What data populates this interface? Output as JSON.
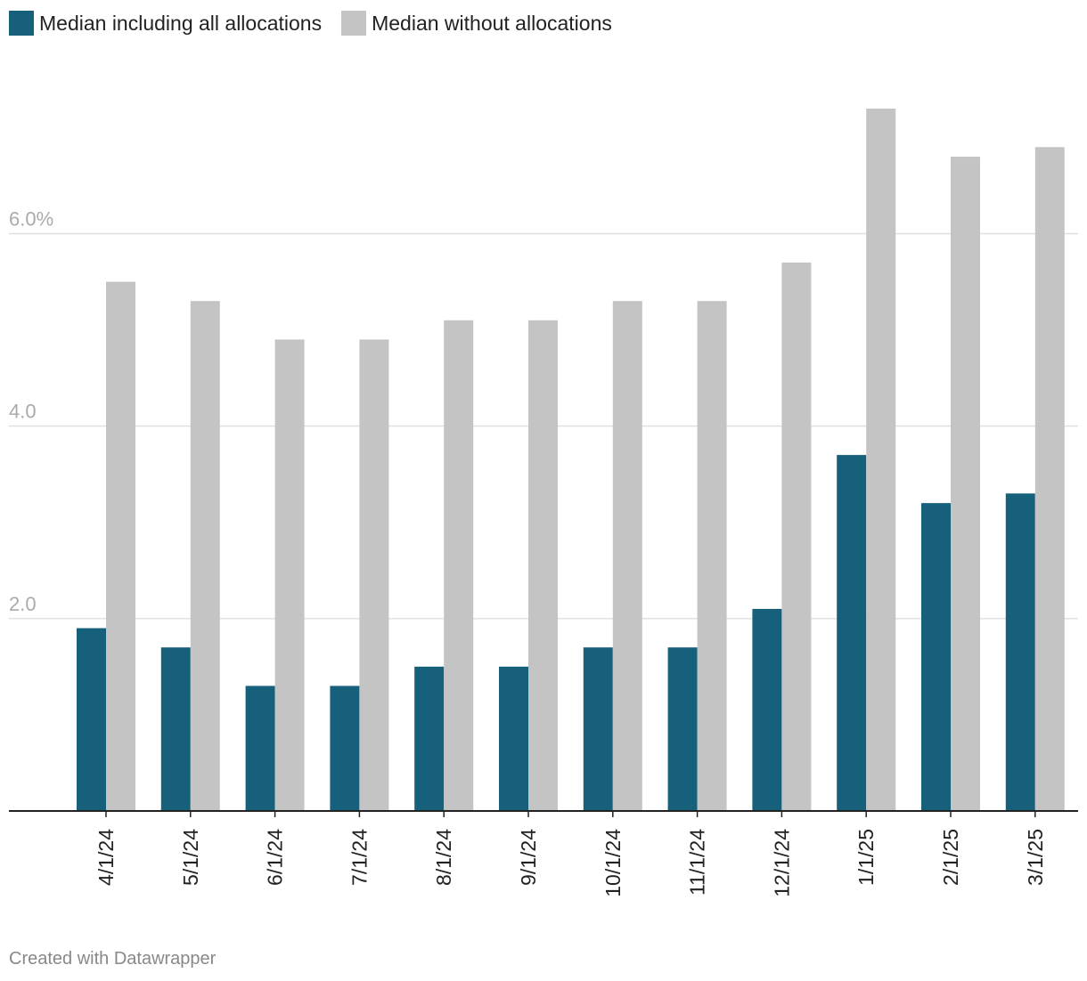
{
  "colors": {
    "series1": "#17607b",
    "series2": "#c4c4c4",
    "grid": "#e0e0e0",
    "axis": "#222222"
  },
  "legend": {
    "items": [
      {
        "label": "Median including all allocations",
        "color": "#17607b"
      },
      {
        "label": "Median without allocations",
        "color": "#c4c4c4"
      }
    ]
  },
  "credit": "Created with Datawrapper",
  "chart_data": {
    "type": "bar",
    "title": "",
    "xlabel": "",
    "ylabel": "",
    "ylim": [
      0,
      7.3
    ],
    "y_ticks": [
      {
        "value": 2,
        "label": "2.0"
      },
      {
        "value": 4,
        "label": "4.0"
      },
      {
        "value": 6,
        "label": "6.0%"
      }
    ],
    "categories": [
      "4/1/24",
      "5/1/24",
      "6/1/24",
      "7/1/24",
      "8/1/24",
      "9/1/24",
      "10/1/24",
      "11/1/24",
      "12/1/24",
      "1/1/25",
      "2/1/25",
      "3/1/25"
    ],
    "series": [
      {
        "name": "Median including all allocations",
        "values": [
          1.9,
          1.7,
          1.3,
          1.3,
          1.5,
          1.5,
          1.7,
          1.7,
          2.1,
          3.7,
          3.2,
          3.3
        ]
      },
      {
        "name": "Median without allocations",
        "values": [
          5.5,
          5.3,
          4.9,
          4.9,
          5.1,
          5.1,
          5.3,
          5.3,
          5.7,
          7.3,
          6.8,
          6.9
        ]
      }
    ]
  }
}
